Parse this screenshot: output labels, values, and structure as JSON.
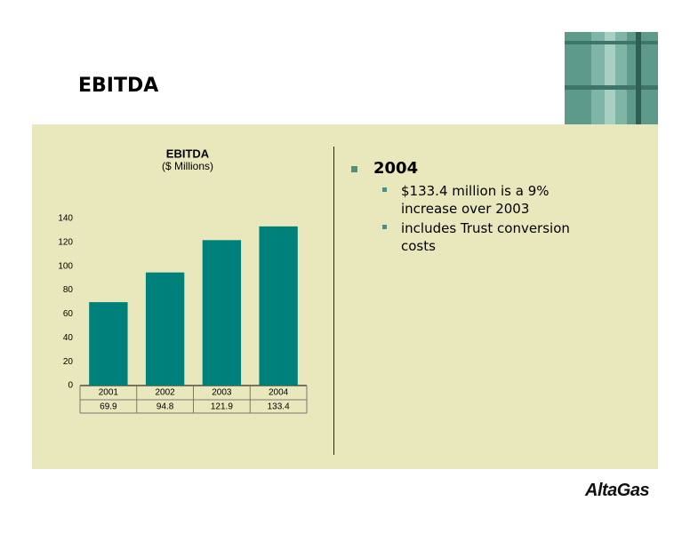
{
  "header": {
    "title": "EBITDA"
  },
  "chart_data": {
    "type": "bar",
    "title": "EBITDA",
    "subtitle": "($ Millions)",
    "categories": [
      "2001",
      "2002",
      "2003",
      "2004"
    ],
    "values": [
      69.9,
      94.8,
      121.9,
      133.4
    ],
    "color": "#00807a",
    "ylim": [
      0,
      140
    ],
    "yticks": [
      0,
      20,
      40,
      60,
      80,
      100,
      120,
      140
    ],
    "grid": false
  },
  "bullets": [
    {
      "text": "2004",
      "sub": [
        "$133.4 million is a 9% increase over 2003",
        "includes Trust conversion costs"
      ]
    }
  ],
  "logo": "AltaGas"
}
